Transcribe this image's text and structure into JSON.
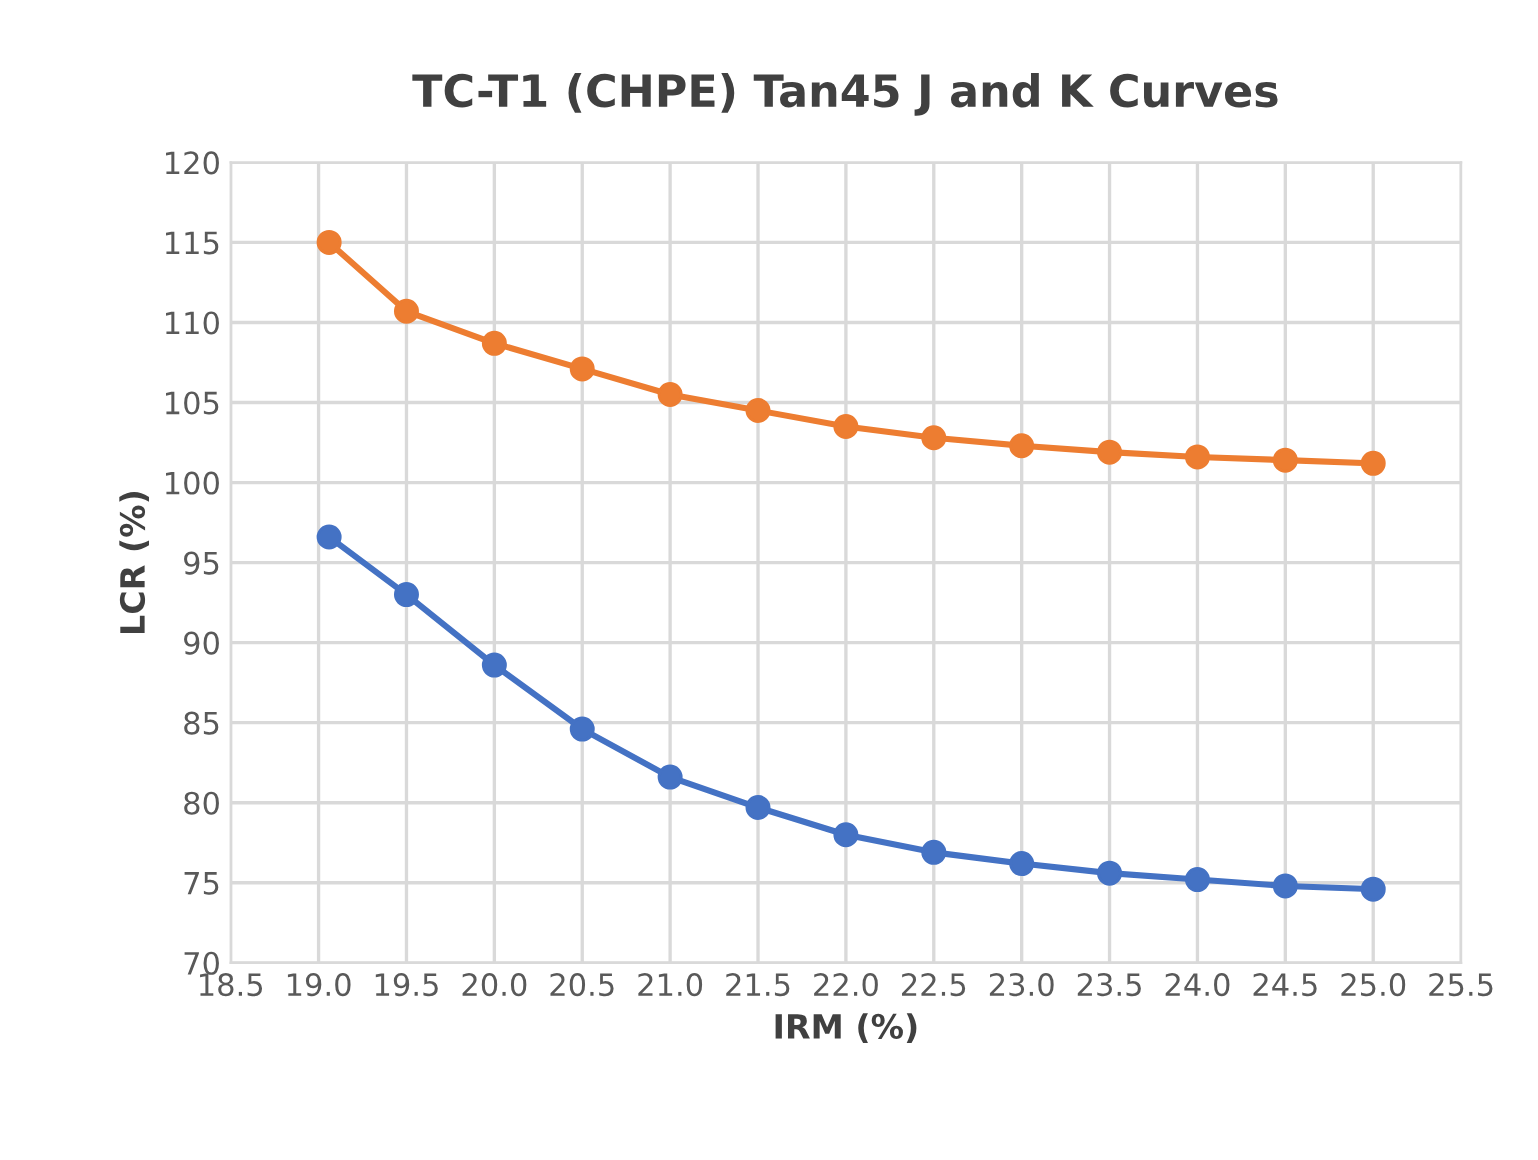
{
  "chart_data": {
    "type": "line",
    "title": "TC-T1 (CHPE) Tan45 J and K Curves",
    "xlabel": "IRM (%)",
    "ylabel": "LCR (%)",
    "x": [
      19.06,
      19.5,
      20.0,
      20.5,
      21.0,
      21.5,
      22.0,
      22.5,
      23.0,
      23.5,
      24.0,
      24.5,
      25.0
    ],
    "series": [
      {
        "color": "#ed7d31",
        "values": [
          115.0,
          110.7,
          108.7,
          107.1,
          105.5,
          104.5,
          103.5,
          102.8,
          102.3,
          101.9,
          101.6,
          101.4,
          101.2
        ]
      },
      {
        "color": "#4472c4",
        "values": [
          96.6,
          93.0,
          88.6,
          84.6,
          81.6,
          79.7,
          78.0,
          76.9,
          76.2,
          75.6,
          75.2,
          74.8,
          74.6
        ]
      }
    ],
    "xlim": [
      18.5,
      25.5
    ],
    "xticks": [
      {
        "value": 18.5,
        "label": "18.5"
      },
      {
        "value": 19.0,
        "label": "19.0"
      },
      {
        "value": 19.5,
        "label": "19.5"
      },
      {
        "value": 20.0,
        "label": "20.0"
      },
      {
        "value": 20.5,
        "label": "20.5"
      },
      {
        "value": 21.0,
        "label": "21.0"
      },
      {
        "value": 21.5,
        "label": "21.5"
      },
      {
        "value": 22.0,
        "label": "22.0"
      },
      {
        "value": 22.5,
        "label": "22.5"
      },
      {
        "value": 23.0,
        "label": "23.0"
      },
      {
        "value": 23.5,
        "label": "23.5"
      },
      {
        "value": 24.0,
        "label": "24.0"
      },
      {
        "value": 24.5,
        "label": "24.5"
      },
      {
        "value": 25.0,
        "label": "25.0"
      },
      {
        "value": 25.5,
        "label": "25.5"
      }
    ],
    "ylim": [
      70,
      120
    ],
    "yticks": [
      70,
      75,
      80,
      85,
      90,
      95,
      100,
      105,
      110,
      115,
      120
    ],
    "grid": true,
    "marker": "circle",
    "line_style": "solid"
  }
}
